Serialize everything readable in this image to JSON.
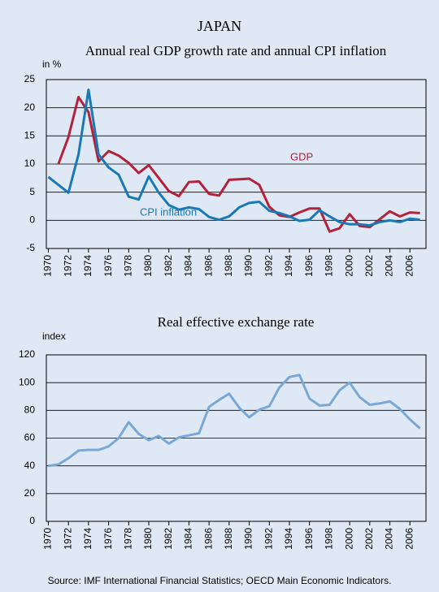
{
  "title": "JAPAN",
  "source": "Source: IMF International Financial Statistics; OECD Main Economic Indicators.",
  "chart_data": [
    {
      "type": "line",
      "title": "Annual real GDP growth rate and annual CPI inflation",
      "y_label": "in %",
      "x": [
        1970,
        1971,
        1972,
        1973,
        1974,
        1975,
        1976,
        1977,
        1978,
        1979,
        1980,
        1981,
        1982,
        1983,
        1984,
        1985,
        1986,
        1987,
        1988,
        1989,
        1990,
        1991,
        1992,
        1993,
        1994,
        1995,
        1996,
        1997,
        1998,
        1999,
        2000,
        2001,
        2002,
        2003,
        2004,
        2005,
        2006,
        2007
      ],
      "series": [
        {
          "name": "GDP",
          "color": "#b3213a",
          "values": [
            null,
            10,
            14.8,
            21.9,
            19.2,
            10.5,
            12.3,
            11.5,
            10.2,
            8.4,
            9.8,
            7.5,
            5.2,
            4.3,
            6.8,
            6.9,
            4.7,
            4.4,
            7.2,
            7.3,
            7.4,
            6.3,
            2.4,
            0.9,
            0.6,
            1.4,
            2.1,
            2.1,
            -2.0,
            -1.4,
            1.1,
            -1.0,
            -1.2,
            0.2,
            1.6,
            0.7,
            1.4,
            1.3
          ]
        },
        {
          "name": "CPI inflation",
          "color": "#1a78b4",
          "values": [
            7.7,
            6.3,
            4.9,
            11.7,
            23.2,
            11.7,
            9.4,
            8.1,
            4.2,
            3.7,
            7.8,
            4.9,
            2.7,
            1.9,
            2.3,
            2.0,
            0.6,
            0.1,
            0.7,
            2.3,
            3.1,
            3.3,
            1.7,
            1.3,
            0.7,
            -0.1,
            0.1,
            1.8,
            0.7,
            -0.3,
            -0.7,
            -0.7,
            -0.9,
            -0.3,
            0.0,
            -0.3,
            0.3,
            0.1
          ]
        }
      ],
      "xlim": [
        1969.8,
        2007.6
      ],
      "xticks": [
        1970,
        1972,
        1974,
        1976,
        1978,
        1980,
        1982,
        1984,
        1986,
        1988,
        1990,
        1992,
        1994,
        1996,
        1998,
        2000,
        2002,
        2004,
        2006
      ],
      "ylim": [
        -5,
        25
      ],
      "yticks": [
        -5,
        0,
        5,
        10,
        15,
        20,
        25
      ],
      "grid": true
    },
    {
      "type": "line",
      "title": "Real effective exchange rate",
      "y_label": "index",
      "x": [
        1970,
        1971,
        1972,
        1973,
        1974,
        1975,
        1976,
        1977,
        1978,
        1979,
        1980,
        1981,
        1982,
        1983,
        1984,
        1985,
        1986,
        1987,
        1988,
        1989,
        1990,
        1991,
        1992,
        1993,
        1994,
        1995,
        1996,
        1997,
        1998,
        1999,
        2000,
        2001,
        2002,
        2003,
        2004,
        2005,
        2006,
        2007
      ],
      "series": [
        {
          "color": "#7ba7d4",
          "values": [
            40,
            41,
            45.5,
            51,
            51.5,
            51.5,
            54,
            60,
            71.5,
            63,
            58.5,
            61.5,
            56,
            60.5,
            62,
            63.5,
            82.5,
            87.5,
            92,
            82,
            75,
            80.5,
            83,
            96.5,
            104,
            105.5,
            88.5,
            83.5,
            84,
            94.5,
            100,
            89.5,
            84,
            85,
            86.5,
            81,
            73.5,
            67
          ]
        }
      ],
      "xlim": [
        1969.8,
        2007.6
      ],
      "xticks": [
        1970,
        1972,
        1974,
        1976,
        1978,
        1980,
        1982,
        1984,
        1986,
        1988,
        1990,
        1992,
        1994,
        1996,
        1998,
        2000,
        2002,
        2004,
        2006
      ],
      "ylim": [
        0,
        120
      ],
      "yticks": [
        0,
        20,
        40,
        60,
        80,
        100,
        120
      ],
      "grid": true
    }
  ]
}
